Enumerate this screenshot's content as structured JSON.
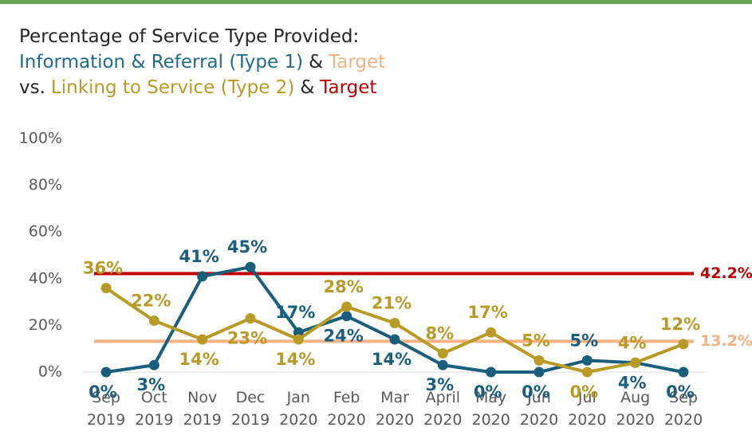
{
  "chart_data": {
    "type": "line",
    "title_lines": [
      [
        {
          "text": "Percentage of Service Type Provided:",
          "color": "#262626"
        }
      ],
      [
        {
          "text": "Information & Referral (Type 1)",
          "color": "#1f6b8c"
        },
        {
          "text": "&",
          "color": "#262626"
        },
        {
          "text": "Target",
          "color": "#f4b183"
        }
      ],
      [
        {
          "text": "vs.",
          "color": "#262626"
        },
        {
          "text": "Linking to Service (Type 2)",
          "color": "#b89b26"
        },
        {
          "text": "&",
          "color": "#262626"
        },
        {
          "text": "Target",
          "color": "#c00000"
        }
      ]
    ],
    "categories": [
      "Sep 2019",
      "Oct 2019",
      "Nov 2019",
      "Dec 2019",
      "Jan 2020",
      "Feb 2020",
      "Mar 2020",
      "April 2020",
      "May 2020",
      "Jun 2020",
      "Jul 2020",
      "Aug 2020",
      "Sep 2020"
    ],
    "series": [
      {
        "name": "Information & Referral (Type 1)",
        "color": "#1a5e7e",
        "values": [
          0,
          3,
          41,
          45,
          17,
          24,
          14,
          3,
          0,
          0,
          5,
          4,
          0
        ],
        "value_labels": [
          "0%",
          "3%",
          "41%",
          "45%",
          "17%",
          "24%",
          "14%",
          "3%",
          "0%",
          "0%",
          "5%",
          "4%",
          "0%"
        ]
      },
      {
        "name": "Linking to Service (Type 2)",
        "color": "#b89b26",
        "values": [
          36,
          22,
          14,
          23,
          14,
          28,
          21,
          8,
          17,
          5,
          0,
          4,
          12
        ],
        "value_labels": [
          "36%",
          "22%",
          "14%",
          "23%",
          "14%",
          "28%",
          "21%",
          "8%",
          "17%",
          "5%",
          "0%",
          "4%",
          "12%"
        ]
      }
    ],
    "targets": [
      {
        "value": 42.2,
        "label": "42.2%",
        "color": "#c00000"
      },
      {
        "value": 13.2,
        "label": "13.2%",
        "color": "#f4b183"
      }
    ],
    "ylim": [
      0,
      100
    ],
    "yticks": [
      {
        "value": 0,
        "label": "0%"
      },
      {
        "value": 20,
        "label": "20%"
      },
      {
        "value": 40,
        "label": "40%"
      },
      {
        "value": 60,
        "label": "60%"
      },
      {
        "value": 80,
        "label": "80%"
      },
      {
        "value": 100,
        "label": "100%"
      }
    ]
  }
}
